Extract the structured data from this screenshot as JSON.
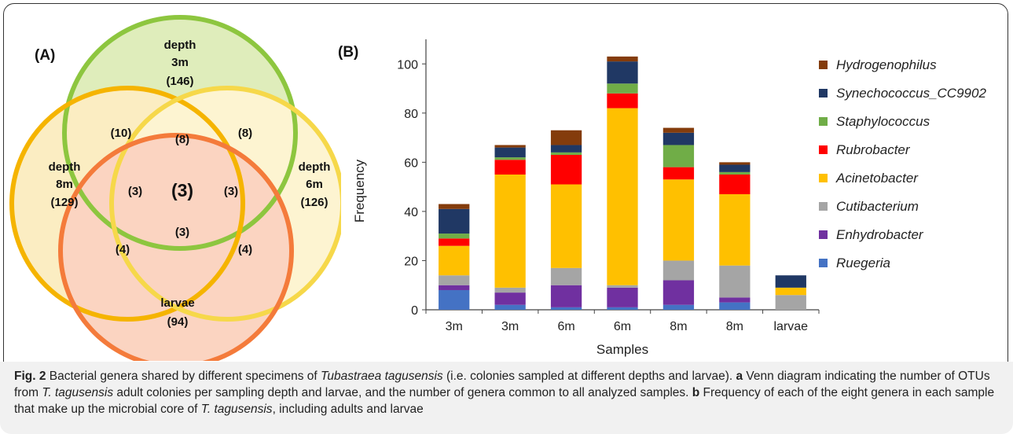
{
  "panel_a": {
    "label": "(A)",
    "sets": [
      {
        "name": "depth",
        "depth": "3m",
        "count": "(146)",
        "color": "#8dc63f"
      },
      {
        "name": "depth",
        "depth": "8m",
        "count": "(129)",
        "color": "#f5a800"
      },
      {
        "name": "depth",
        "depth": "6m",
        "count": "(126)",
        "color": "#f6d84a"
      },
      {
        "name": "larvae",
        "depth": "",
        "count": "(94)",
        "color": "#f47b3b"
      }
    ],
    "regions": {
      "3m_8m": "(10)",
      "3m_6m_8m": "(8)",
      "3m_6m": "(8)",
      "3m_8m_larvae": "(3)",
      "all": "(3)",
      "3m_6m_larvae": "(3)",
      "6m_8m_larvae": "(3)",
      "8m_larvae": "(4)",
      "6m_larvae": "(4)"
    }
  },
  "panel_b": {
    "label": "(B)"
  },
  "chart_data": {
    "type": "bar",
    "stacked": true,
    "xlabel": "Samples",
    "ylabel": "Frequency",
    "ylim": [
      0,
      100
    ],
    "yticks": [
      0,
      20,
      40,
      60,
      80,
      100
    ],
    "categories": [
      "3m",
      "3m",
      "6m",
      "6m",
      "8m",
      "8m",
      "larvae"
    ],
    "series": [
      {
        "name": "Ruegeria",
        "color": "#4472c4",
        "values": [
          8,
          2,
          1,
          1,
          2,
          3,
          0
        ]
      },
      {
        "name": "Enhydrobacter",
        "color": "#7030a0",
        "values": [
          2,
          5,
          9,
          8,
          10,
          2,
          0
        ]
      },
      {
        "name": "Cutibacterium",
        "color": "#a5a5a5",
        "values": [
          4,
          2,
          7,
          1,
          8,
          13,
          6
        ]
      },
      {
        "name": "Acinetobacter",
        "color": "#ffc000",
        "values": [
          12,
          46,
          34,
          72,
          33,
          29,
          3
        ]
      },
      {
        "name": "Rubrobacter",
        "color": "#ff0000",
        "values": [
          3,
          6,
          12,
          6,
          5,
          8,
          0
        ]
      },
      {
        "name": "Staphylococcus",
        "color": "#70ad47",
        "values": [
          2,
          1,
          1,
          4,
          9,
          1,
          0
        ]
      },
      {
        "name": "Synechococcus_CC9902",
        "color": "#203864",
        "values": [
          10,
          4,
          3,
          9,
          5,
          3,
          5
        ]
      },
      {
        "name": "Hydrogenophilus",
        "color": "#843c0c",
        "values": [
          2,
          1,
          6,
          2,
          2,
          1,
          0
        ]
      }
    ],
    "legend_position": "right",
    "legend_order": [
      "Hydrogenophilus",
      "Synechococcus_CC9902",
      "Staphylococcus",
      "Rubrobacter",
      "Acinetobacter",
      "Cutibacterium",
      "Enhydrobacter",
      "Ruegeria"
    ],
    "grid": false
  },
  "caption": {
    "fig_label": "Fig. 2",
    "part1": " Bacterial genera shared by different specimens of ",
    "species_full": "Tubastraea tagusensis",
    "part2": " (i.e. colonies sampled at different depths and larvae). ",
    "a": "a",
    "part3": " Venn diagram indicating the number of OTUs from ",
    "species_short": "T. tagusensis",
    "part4": " adult colonies per sampling depth and larvae, and the number of genera common to all analyzed samples. ",
    "b": "b",
    "part5": " Frequency of each of the eight genera in each sample that make up the microbial core of ",
    "species_short2": "T. tagusensis",
    "part6": ", including adults and larvae"
  }
}
